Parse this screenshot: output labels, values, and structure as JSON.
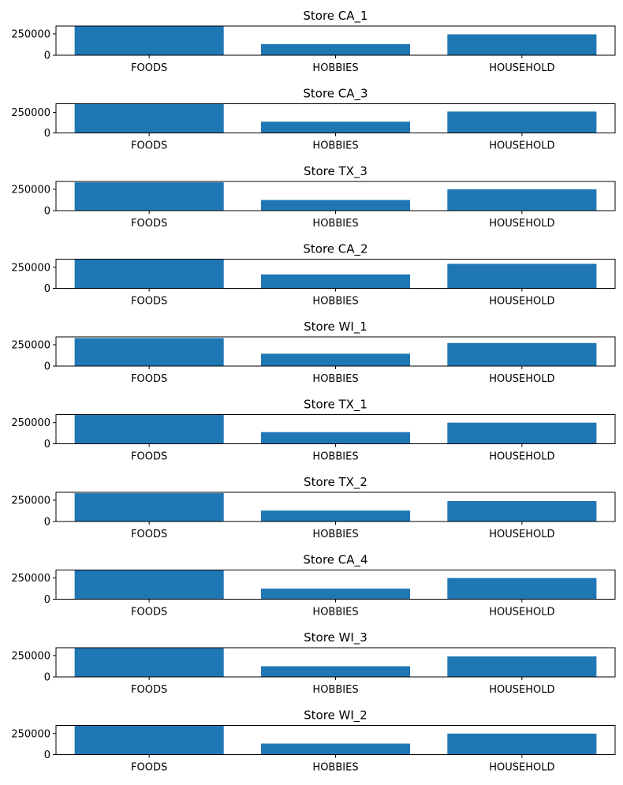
{
  "chart_data": [
    {
      "type": "bar",
      "title": "Store CA_1",
      "categories": [
        "FOODS",
        "HOBBIES",
        "HOUSEHOLD"
      ],
      "values": [
        340000,
        130000,
        245000
      ],
      "ylim": [
        0,
        342000
      ],
      "yticks": [
        0,
        250000
      ],
      "color": "#1f77b4"
    },
    {
      "type": "bar",
      "title": "Store CA_3",
      "categories": [
        "FOODS",
        "HOBBIES",
        "HOUSEHOLD"
      ],
      "values": [
        355000,
        137000,
        260000
      ],
      "ylim": [
        0,
        355000
      ],
      "yticks": [
        0,
        250000
      ],
      "color": "#1f77b4"
    },
    {
      "type": "bar",
      "title": "Store TX_3",
      "categories": [
        "FOODS",
        "HOBBIES",
        "HOUSEHOLD"
      ],
      "values": [
        332000,
        125000,
        250000
      ],
      "ylim": [
        0,
        342000
      ],
      "yticks": [
        0,
        250000
      ],
      "color": "#1f77b4"
    },
    {
      "type": "bar",
      "title": "Store CA_2",
      "categories": [
        "FOODS",
        "HOBBIES",
        "HOUSEHOLD"
      ],
      "values": [
        346000,
        165000,
        291000
      ],
      "ylim": [
        0,
        346000
      ],
      "yticks": [
        0,
        250000
      ],
      "color": "#1f77b4"
    },
    {
      "type": "bar",
      "title": "Store WI_1",
      "categories": [
        "FOODS",
        "HOBBIES",
        "HOUSEHOLD"
      ],
      "values": [
        328000,
        145000,
        270000
      ],
      "ylim": [
        0,
        342000
      ],
      "yticks": [
        0,
        250000
      ],
      "color": "#1f77b4"
    },
    {
      "type": "bar",
      "title": "Store TX_1",
      "categories": [
        "FOODS",
        "HOBBIES",
        "HOUSEHOLD"
      ],
      "values": [
        345000,
        138000,
        250000
      ],
      "ylim": [
        0,
        345000
      ],
      "yticks": [
        0,
        250000
      ],
      "color": "#1f77b4"
    },
    {
      "type": "bar",
      "title": "Store TX_2",
      "categories": [
        "FOODS",
        "HOBBIES",
        "HOUSEHOLD"
      ],
      "values": [
        332000,
        128000,
        240000
      ],
      "ylim": [
        0,
        342000
      ],
      "yticks": [
        0,
        250000
      ],
      "color": "#1f77b4"
    },
    {
      "type": "bar",
      "title": "Store CA_4",
      "categories": [
        "FOODS",
        "HOBBIES",
        "HOUSEHOLD"
      ],
      "values": [
        345000,
        125000,
        250000
      ],
      "ylim": [
        0,
        345000
      ],
      "yticks": [
        0,
        250000
      ],
      "color": "#1f77b4"
    },
    {
      "type": "bar",
      "title": "Store WI_3",
      "categories": [
        "FOODS",
        "HOBBIES",
        "HOUSEHOLD"
      ],
      "values": [
        337000,
        125000,
        240000
      ],
      "ylim": [
        0,
        342000
      ],
      "yticks": [
        0,
        250000
      ],
      "color": "#1f77b4"
    },
    {
      "type": "bar",
      "title": "Store WI_2",
      "categories": [
        "FOODS",
        "HOBBIES",
        "HOUSEHOLD"
      ],
      "values": [
        346000,
        131000,
        249000
      ],
      "ylim": [
        0,
        346000
      ],
      "yticks": [
        0,
        250000
      ],
      "color": "#1f77b4"
    }
  ]
}
